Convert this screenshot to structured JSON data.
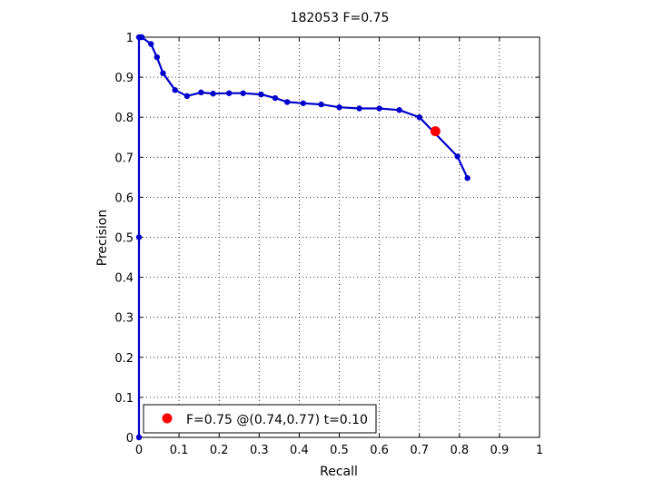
{
  "chart_data": {
    "type": "line",
    "title": "182053 F=0.75",
    "xlabel": "Recall",
    "ylabel": "Precision",
    "xlim": [
      0,
      1
    ],
    "ylim": [
      0,
      1
    ],
    "xticks": [
      "0",
      "0.1",
      "0.2",
      "0.3",
      "0.4",
      "0.5",
      "0.6",
      "0.7",
      "0.8",
      "0.9",
      "1"
    ],
    "yticks": [
      "0",
      "0.1",
      "0.2",
      "0.3",
      "0.4",
      "0.5",
      "0.6",
      "0.7",
      "0.8",
      "0.9",
      "1"
    ],
    "grid": "dotted",
    "colors": {
      "series": "#0000cc",
      "best_point": "#ff0000"
    },
    "series": [
      {
        "x": [
          0,
          0,
          0,
          0.003,
          0.007,
          0.03,
          0.045,
          0.06,
          0.09,
          0.12,
          0.155,
          0.185,
          0.225,
          0.26,
          0.305,
          0.34,
          0.37,
          0.41,
          0.455,
          0.5,
          0.55,
          0.6,
          0.65,
          0.7,
          0.795,
          0.82
        ],
        "y": [
          0,
          0.5,
          1.0,
          1.0,
          1.0,
          0.983,
          0.95,
          0.91,
          0.868,
          0.853,
          0.862,
          0.859,
          0.86,
          0.86,
          0.857,
          0.848,
          0.838,
          0.835,
          0.832,
          0.825,
          0.822,
          0.822,
          0.818,
          0.8,
          0.702,
          0.648
        ]
      }
    ],
    "best_point": {
      "x": 0.74,
      "y": 0.765
    },
    "legend": {
      "position": "bottom-left",
      "text": "F=0.75 @(0.74,0.77) t=0.10"
    }
  }
}
